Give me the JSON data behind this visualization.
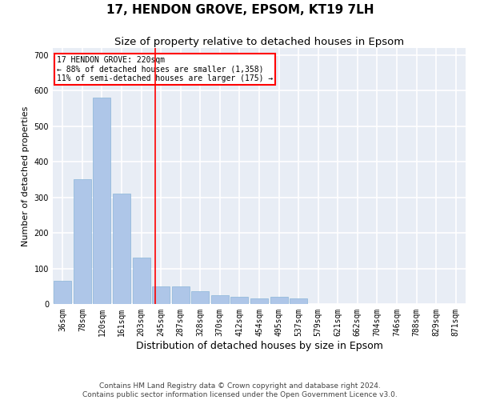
{
  "title": "17, HENDON GROVE, EPSOM, KT19 7LH",
  "subtitle": "Size of property relative to detached houses in Epsom",
  "xlabel": "Distribution of detached houses by size in Epsom",
  "ylabel": "Number of detached properties",
  "categories": [
    "36sqm",
    "78sqm",
    "120sqm",
    "161sqm",
    "203sqm",
    "245sqm",
    "287sqm",
    "328sqm",
    "370sqm",
    "412sqm",
    "454sqm",
    "495sqm",
    "537sqm",
    "579sqm",
    "621sqm",
    "662sqm",
    "704sqm",
    "746sqm",
    "788sqm",
    "829sqm",
    "871sqm"
  ],
  "values": [
    65,
    350,
    580,
    310,
    130,
    50,
    50,
    35,
    25,
    20,
    15,
    20,
    15,
    0,
    0,
    0,
    0,
    0,
    0,
    0,
    0
  ],
  "bar_color": "#aec6e8",
  "bar_edge_color": "#8ab4d8",
  "vline_x": 4.7,
  "vline_color": "red",
  "annotation_text": "17 HENDON GROVE: 220sqm\n← 88% of detached houses are smaller (1,358)\n11% of semi-detached houses are larger (175) →",
  "annotation_box_color": "white",
  "annotation_box_edge": "red",
  "ylim": [
    0,
    720
  ],
  "yticks": [
    0,
    100,
    200,
    300,
    400,
    500,
    600,
    700
  ],
  "bg_color": "#e8edf5",
  "grid_color": "white",
  "footer": "Contains HM Land Registry data © Crown copyright and database right 2024.\nContains public sector information licensed under the Open Government Licence v3.0.",
  "title_fontsize": 11,
  "subtitle_fontsize": 9.5,
  "xlabel_fontsize": 9,
  "ylabel_fontsize": 8,
  "footer_fontsize": 6.5,
  "tick_fontsize": 7
}
